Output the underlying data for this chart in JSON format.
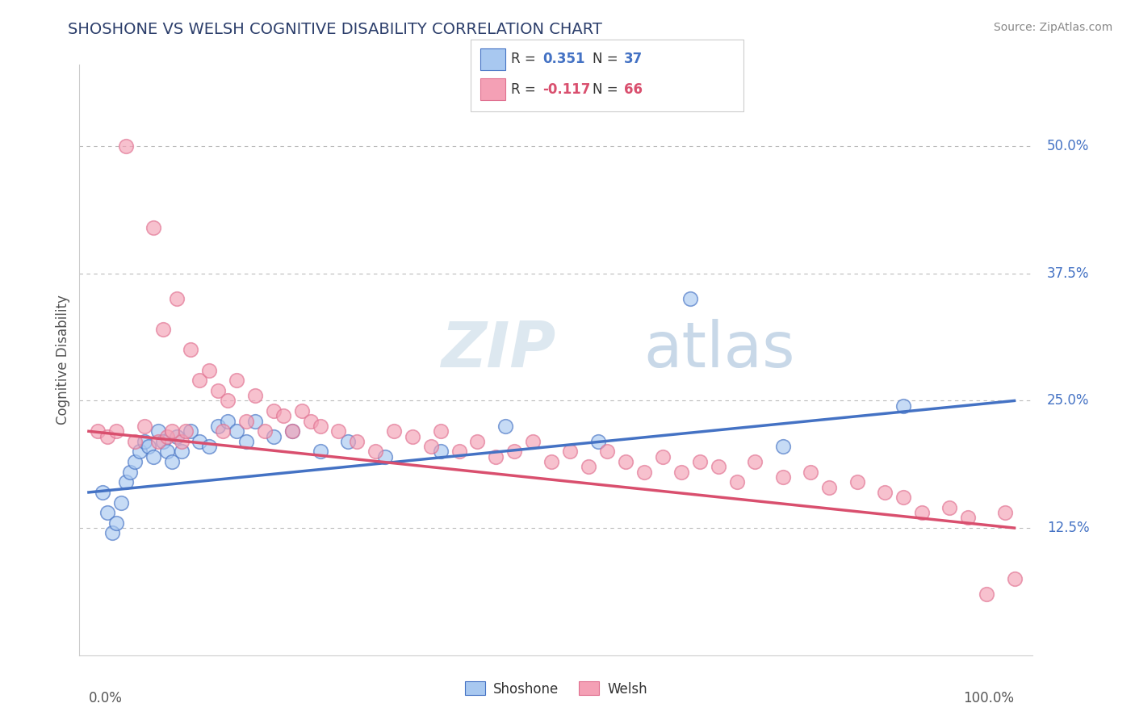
{
  "title": "SHOSHONE VS WELSH COGNITIVE DISABILITY CORRELATION CHART",
  "source": "Source: ZipAtlas.com",
  "ylabel": "Cognitive Disability",
  "ytick_labels": [
    "12.5%",
    "25.0%",
    "37.5%",
    "50.0%"
  ],
  "ytick_values": [
    12.5,
    25.0,
    37.5,
    50.0
  ],
  "shoshone_color": "#a8c8f0",
  "shoshone_edge_color": "#7aaad8",
  "welsh_color": "#f4a0b5",
  "welsh_edge_color": "#e07090",
  "shoshone_line_color": "#4472c4",
  "welsh_line_color": "#d94f6e",
  "watermark_zip_color": "#dde8f0",
  "watermark_atlas_color": "#c8d8e8",
  "title_color": "#2c3e6b",
  "source_color": "#888888",
  "label_color": "#555555",
  "right_label_color": "#4472c4",
  "grid_color": "#bbbbbb",
  "sh_x": [
    1.5,
    2.0,
    2.5,
    3.0,
    3.5,
    4.0,
    4.5,
    5.0,
    5.5,
    6.0,
    6.5,
    7.0,
    7.5,
    8.0,
    8.5,
    9.0,
    9.5,
    10.0,
    11.0,
    12.0,
    13.0,
    14.0,
    15.0,
    16.0,
    17.0,
    18.0,
    20.0,
    22.0,
    25.0,
    28.0,
    32.0,
    38.0,
    45.0,
    55.0,
    65.0,
    75.0,
    88.0
  ],
  "sh_y": [
    16.0,
    14.0,
    12.0,
    13.0,
    15.0,
    17.0,
    18.0,
    19.0,
    20.0,
    21.0,
    20.5,
    19.5,
    22.0,
    21.0,
    20.0,
    19.0,
    21.5,
    20.0,
    22.0,
    21.0,
    20.5,
    22.5,
    23.0,
    22.0,
    21.0,
    23.0,
    21.5,
    22.0,
    20.0,
    21.0,
    19.5,
    20.0,
    22.5,
    21.0,
    35.0,
    20.5,
    24.5
  ],
  "we_x": [
    1.0,
    2.0,
    3.0,
    4.0,
    5.0,
    6.0,
    7.0,
    7.5,
    8.0,
    8.5,
    9.0,
    9.5,
    10.0,
    10.5,
    11.0,
    12.0,
    13.0,
    14.0,
    14.5,
    15.0,
    16.0,
    17.0,
    18.0,
    19.0,
    20.0,
    21.0,
    22.0,
    23.0,
    24.0,
    25.0,
    27.0,
    29.0,
    31.0,
    33.0,
    35.0,
    37.0,
    38.0,
    40.0,
    42.0,
    44.0,
    46.0,
    48.0,
    50.0,
    52.0,
    54.0,
    56.0,
    58.0,
    60.0,
    62.0,
    64.0,
    66.0,
    68.0,
    70.0,
    72.0,
    75.0,
    78.0,
    80.0,
    83.0,
    86.0,
    88.0,
    90.0,
    93.0,
    95.0,
    97.0,
    99.0,
    100.0
  ],
  "we_y": [
    22.0,
    21.5,
    22.0,
    50.0,
    21.0,
    22.5,
    42.0,
    21.0,
    32.0,
    21.5,
    22.0,
    35.0,
    21.0,
    22.0,
    30.0,
    27.0,
    28.0,
    26.0,
    22.0,
    25.0,
    27.0,
    23.0,
    25.5,
    22.0,
    24.0,
    23.5,
    22.0,
    24.0,
    23.0,
    22.5,
    22.0,
    21.0,
    20.0,
    22.0,
    21.5,
    20.5,
    22.0,
    20.0,
    21.0,
    19.5,
    20.0,
    21.0,
    19.0,
    20.0,
    18.5,
    20.0,
    19.0,
    18.0,
    19.5,
    18.0,
    19.0,
    18.5,
    17.0,
    19.0,
    17.5,
    18.0,
    16.5,
    17.0,
    16.0,
    15.5,
    14.0,
    14.5,
    13.5,
    6.0,
    14.0,
    7.5
  ]
}
